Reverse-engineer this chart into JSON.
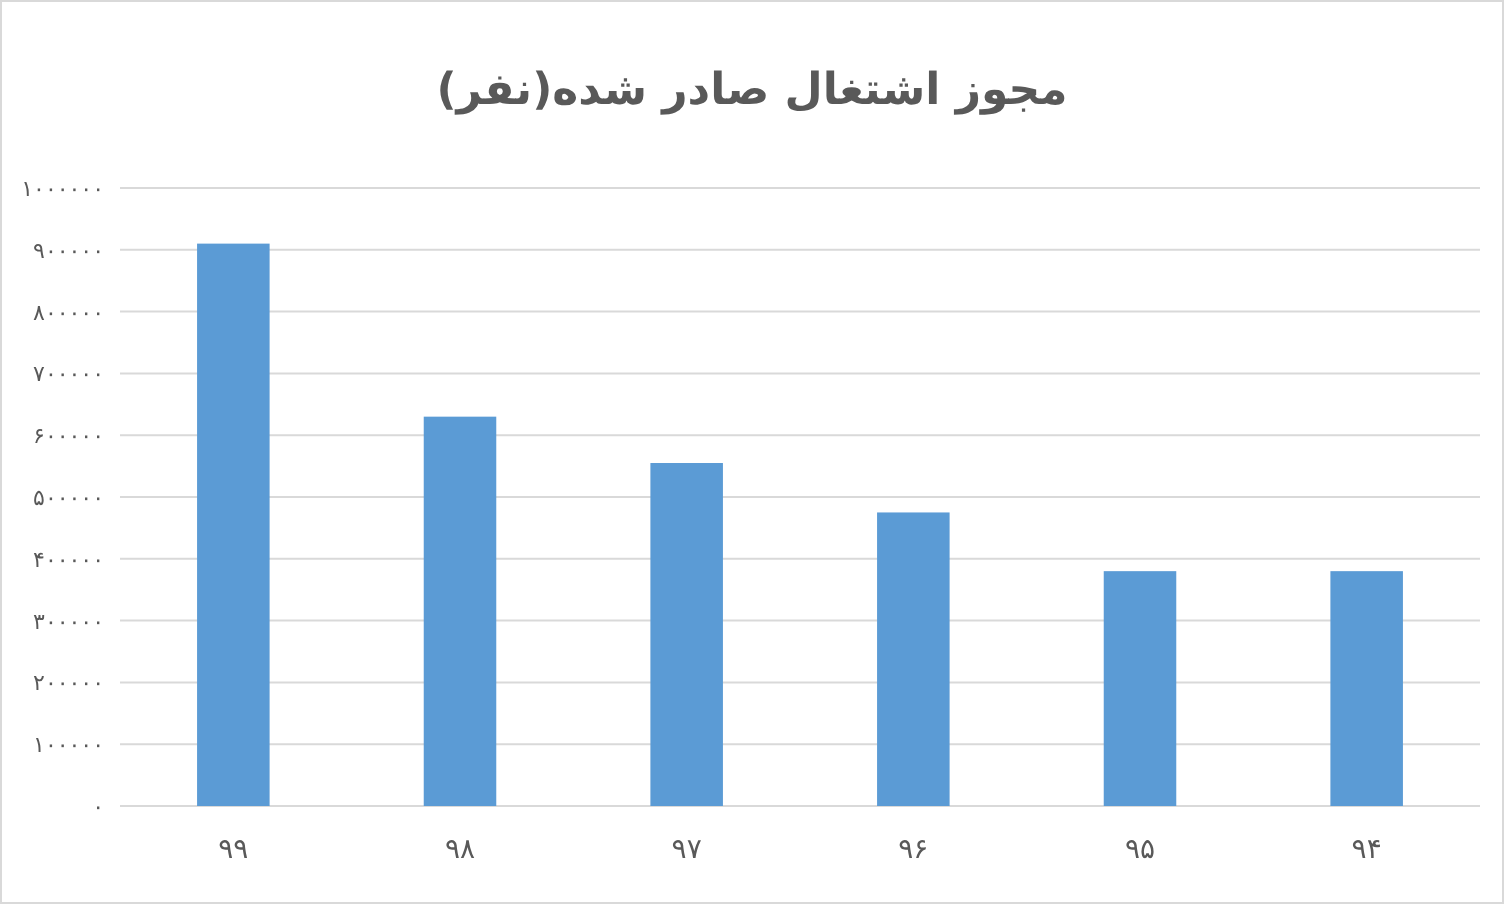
{
  "chart_data": {
    "type": "bar",
    "title": "مجوز اشتغال صادر شده(نفر)",
    "categories": [
      "۹۹",
      "۹۸",
      "۹۷",
      "۹۶",
      "۹۵",
      "۹۴"
    ],
    "values": [
      910000,
      630000,
      555000,
      475000,
      380000,
      380000
    ],
    "color": "#5b9bd5",
    "ylim": [
      0,
      1000000
    ],
    "yticks": [
      {
        "value": 0,
        "label": "۰"
      },
      {
        "value": 100000,
        "label": "۱۰۰۰۰۰"
      },
      {
        "value": 200000,
        "label": "۲۰۰۰۰۰"
      },
      {
        "value": 300000,
        "label": "۳۰۰۰۰۰"
      },
      {
        "value": 400000,
        "label": "۴۰۰۰۰۰"
      },
      {
        "value": 500000,
        "label": "۵۰۰۰۰۰"
      },
      {
        "value": 600000,
        "label": "۶۰۰۰۰۰"
      },
      {
        "value": 700000,
        "label": "۷۰۰۰۰۰"
      },
      {
        "value": 800000,
        "label": "۸۰۰۰۰۰"
      },
      {
        "value": 900000,
        "label": "۹۰۰۰۰۰"
      },
      {
        "value": 1000000,
        "label": "۱۰۰۰۰۰۰"
      }
    ],
    "grid": "y"
  }
}
